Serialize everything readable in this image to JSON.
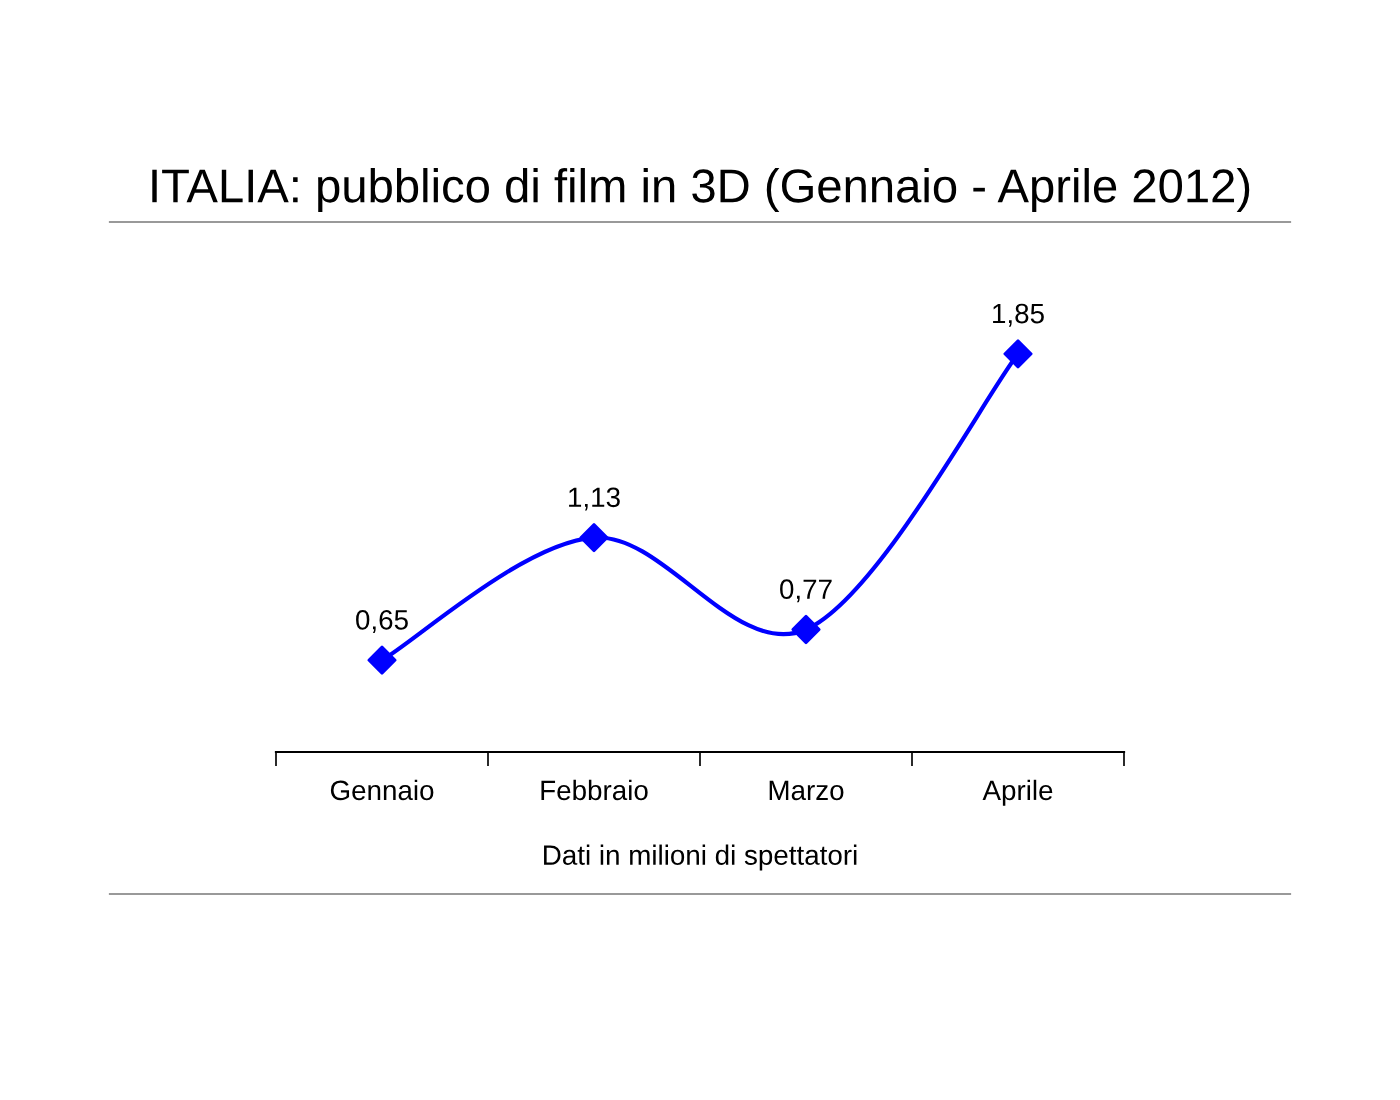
{
  "chart_data": {
    "type": "line",
    "title": "ITALIA: pubblico di film in 3D (Gennaio - Aprile 2012)",
    "xlabel": "Dati in milioni di spettatori",
    "categories": [
      "Gennaio",
      "Febbraio",
      "Marzo",
      "Aprile"
    ],
    "series": [
      {
        "color": "#0000ff",
        "values": [
          0.65,
          1.13,
          0.77,
          1.85
        ],
        "value_labels": [
          "0,65",
          "1,13",
          "0,77",
          "1,85"
        ]
      }
    ],
    "marker": "diamond",
    "line_style": "solid",
    "grid": false,
    "legend": false,
    "tick_labels": "x"
  }
}
